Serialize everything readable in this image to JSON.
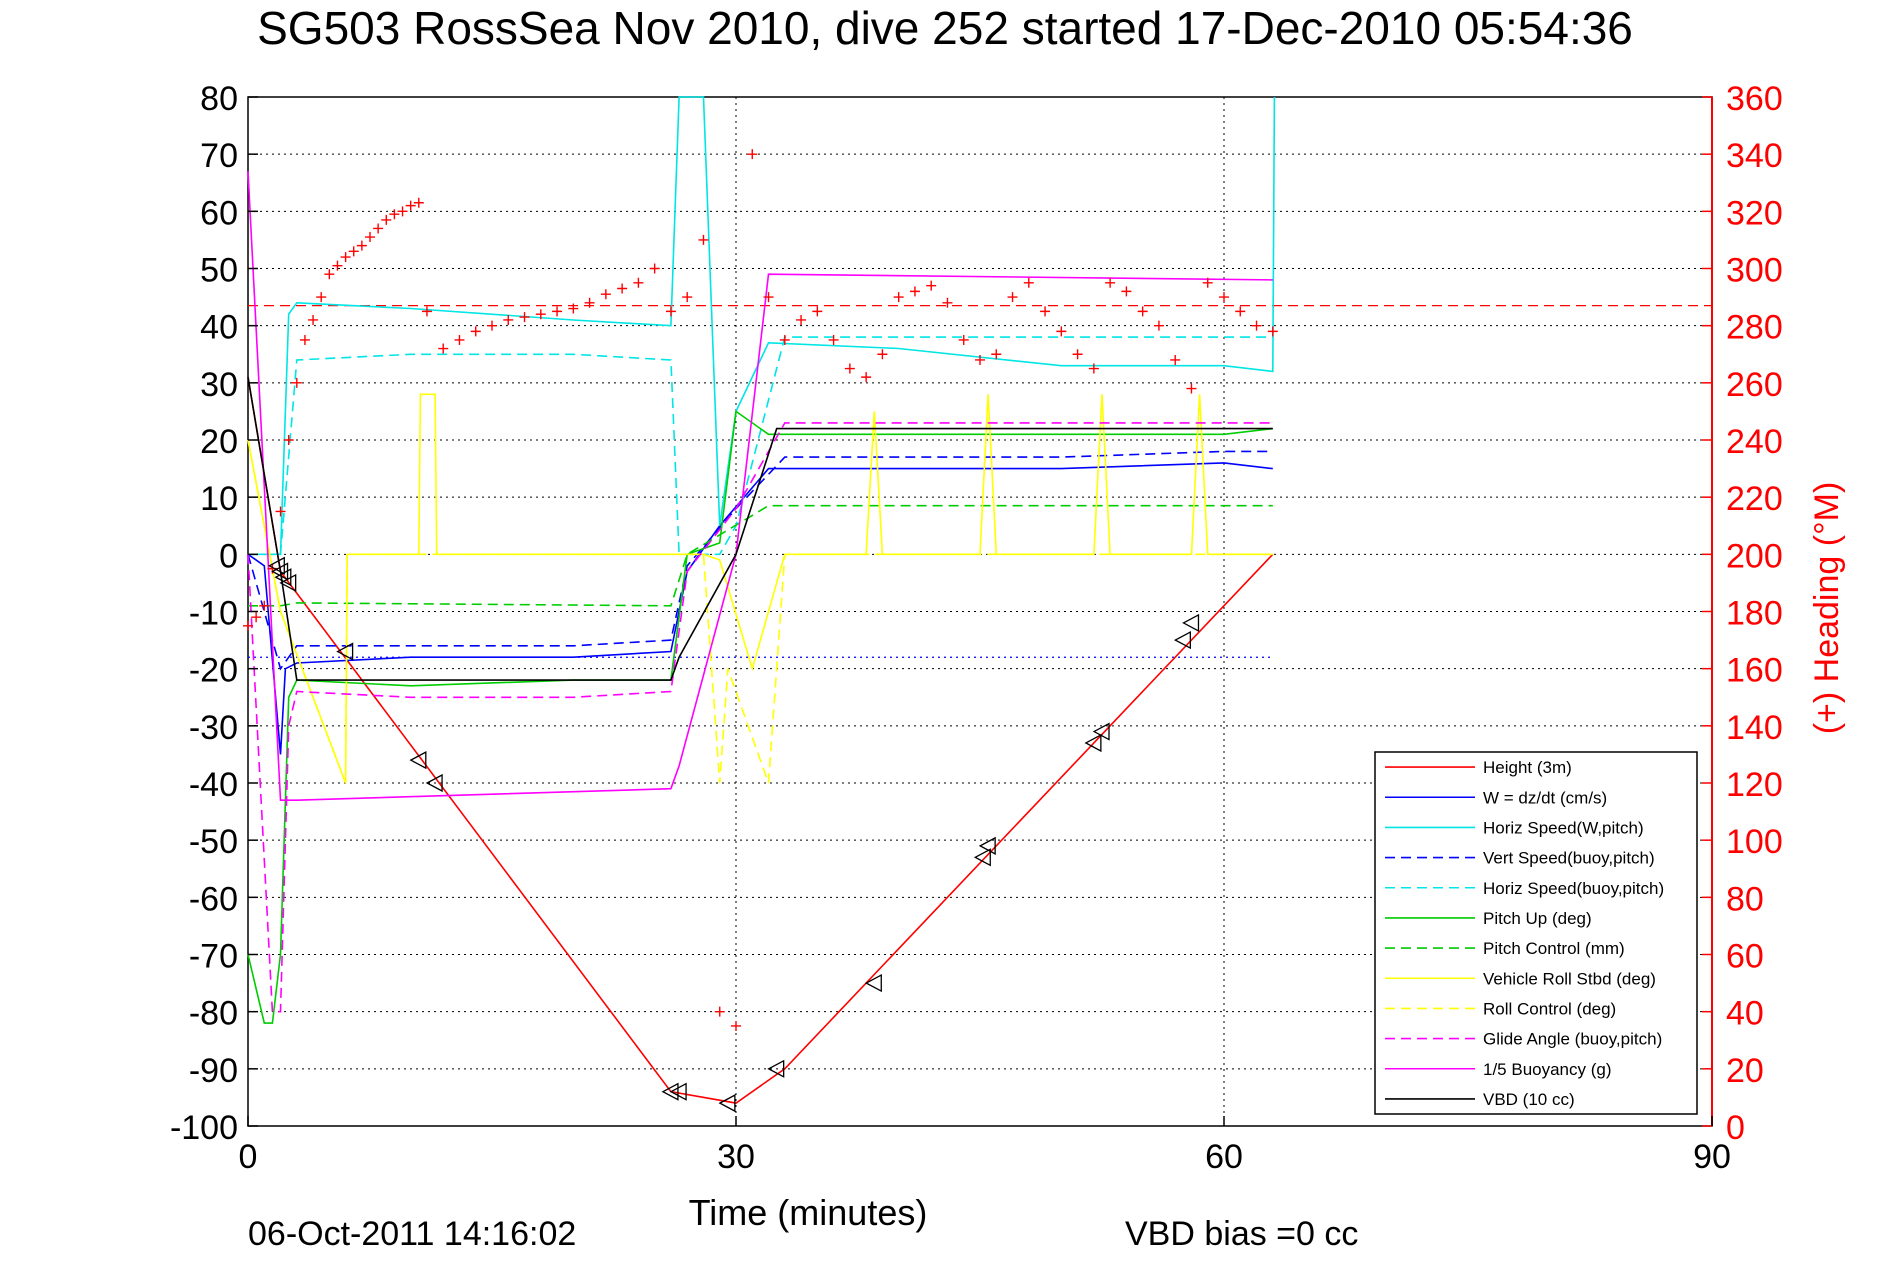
{
  "chart_data": {
    "type": "line",
    "title": "SG503 RossSea Nov 2010, dive 252 started 17-Dec-2010 05:54:36",
    "xlabel": "Time (minutes)",
    "ylabel": "",
    "y2label": "(+) Heading (°M)",
    "footer_left": "06-Oct-2011 14:16:02",
    "footer_right": "VBD bias =0 cc",
    "xlim": [
      0,
      90
    ],
    "ylim": [
      -100,
      80
    ],
    "y2lim": [
      0,
      360
    ],
    "xticks": [
      0,
      30,
      60,
      90
    ],
    "yticks": [
      80,
      70,
      60,
      50,
      40,
      30,
      20,
      10,
      0,
      -10,
      -20,
      -30,
      -40,
      -50,
      -60,
      -70,
      -80,
      -90,
      -100
    ],
    "y2ticks": [
      360,
      340,
      320,
      300,
      280,
      260,
      240,
      220,
      200,
      180,
      160,
      140,
      120,
      100,
      80,
      60,
      40,
      20,
      0
    ],
    "grid": true,
    "legend_position": "bottom-right",
    "reference_lines": [
      {
        "axis": "y",
        "value": 43.5,
        "color": "#ff0000",
        "style": "dashed"
      },
      {
        "axis": "y",
        "value": -18,
        "color": "#0000ff",
        "style": "dotted"
      }
    ],
    "series": [
      {
        "name": "Height (3m)",
        "color": "#ff0000",
        "style": "solid",
        "x": [
          0,
          2,
          26,
          30,
          33,
          63
        ],
        "y": [
          31,
          -3,
          -94,
          -96,
          -90,
          0
        ]
      },
      {
        "name": "W = dz/dt (cm/s)",
        "color": "#0000ff",
        "style": "solid",
        "x": [
          0,
          1,
          2,
          2.3,
          3,
          10,
          20,
          26,
          27,
          29,
          32,
          40,
          50,
          60,
          63
        ],
        "y": [
          0,
          -2,
          -35,
          -20,
          -19,
          -18,
          -18,
          -17,
          -3,
          5,
          15,
          15,
          15,
          16,
          15
        ]
      },
      {
        "name": "Horiz Speed(W,pitch)",
        "color": "#00e5e5",
        "style": "solid",
        "x": [
          0,
          2,
          2.5,
          3,
          10,
          20,
          26,
          26.5,
          27,
          28,
          29,
          30,
          32,
          40,
          50,
          60,
          63,
          63.1
        ],
        "y": [
          0,
          0,
          42,
          44,
          43,
          41,
          40,
          80,
          80,
          80,
          5,
          25,
          37,
          36,
          33,
          33,
          32,
          80
        ]
      },
      {
        "name": "Vert Speed(buoy,pitch)",
        "color": "#0000ff",
        "style": "dashed",
        "x": [
          0,
          2,
          3,
          10,
          20,
          26,
          27,
          30,
          33,
          40,
          50,
          60,
          63
        ],
        "y": [
          0,
          -20,
          -16,
          -16,
          -16,
          -15,
          -2,
          8,
          17,
          17,
          17,
          18,
          18
        ]
      },
      {
        "name": "Horiz Speed(buoy,pitch)",
        "color": "#00e5e5",
        "style": "dashed",
        "x": [
          0,
          2,
          3,
          10,
          20,
          26,
          26.5,
          27,
          29,
          30,
          33,
          40,
          50,
          60,
          63
        ],
        "y": [
          0,
          0,
          34,
          35,
          35,
          34,
          0,
          0,
          0,
          5,
          38,
          38,
          38,
          38,
          38
        ]
      },
      {
        "name": "Pitch Up (deg)",
        "color": "#00cc00",
        "style": "solid",
        "x": [
          0,
          1,
          1.5,
          2,
          2.5,
          3,
          10,
          20,
          26,
          27,
          29,
          30,
          32,
          40,
          50,
          60,
          63
        ],
        "y": [
          -70,
          -82,
          -82,
          -70,
          -25,
          -22,
          -23,
          -22,
          -22,
          0,
          2,
          25,
          21,
          21,
          21,
          21,
          22
        ]
      },
      {
        "name": "Pitch Control (mm)",
        "color": "#00cc00",
        "style": "dashed",
        "x": [
          0,
          2,
          3,
          26,
          27,
          32,
          63
        ],
        "y": [
          -9,
          -9,
          -8.5,
          -9,
          0,
          8.5,
          8.5
        ]
      },
      {
        "name": "Vehicle Roll Stbd (deg)",
        "color": "#ffff00",
        "style": "solid",
        "x": [
          0,
          2,
          6,
          6.1,
          10.5,
          10.6,
          11.5,
          11.6,
          26,
          28,
          29,
          31,
          33,
          38,
          38.5,
          39,
          45,
          45.5,
          46,
          52,
          52.5,
          53,
          58,
          58.5,
          59,
          63
        ],
        "y": [
          20,
          -10,
          -40,
          0,
          0,
          28,
          28,
          0,
          0,
          0,
          -1,
          -20,
          0,
          0,
          25,
          0,
          0,
          28,
          0,
          0,
          28,
          0,
          0,
          28,
          0,
          0
        ]
      },
      {
        "name": "Roll Control (deg)",
        "color": "#ffff00",
        "style": "dashed",
        "x": [
          0,
          2,
          6,
          6.1,
          26,
          28,
          29,
          29.5,
          32,
          33,
          63
        ],
        "y": [
          20,
          -10,
          -40,
          0,
          0,
          0,
          -40,
          -20,
          -40,
          0,
          0
        ]
      },
      {
        "name": "Glide Angle (buoy,pitch)",
        "color": "#ff00ff",
        "style": "dashed",
        "x": [
          0,
          1.5,
          2,
          2.5,
          3,
          10,
          20,
          26,
          27,
          30,
          33,
          40,
          50,
          60,
          63
        ],
        "y": [
          0,
          -80,
          -80,
          -30,
          -24,
          -25,
          -25,
          -24,
          -3,
          8,
          23,
          23,
          23,
          23,
          23
        ]
      },
      {
        "name": "1/5 Buoyancy (g)",
        "color": "#ff00ff",
        "style": "solid",
        "x": [
          0,
          2,
          3,
          26,
          26.5,
          30,
          32,
          63
        ],
        "y": [
          67,
          -43,
          -43,
          -41,
          -37,
          0,
          49,
          48
        ]
      },
      {
        "name": "VBD (10 cc)",
        "color": "#000000",
        "style": "solid",
        "x": [
          0,
          2,
          3,
          26,
          26.5,
          30,
          32.5,
          63
        ],
        "y": [
          31,
          -3,
          -22,
          -22,
          -18,
          0,
          22,
          22
        ]
      }
    ],
    "heading": {
      "name": "(+) Heading",
      "color": "#ff0000",
      "marker": "+",
      "axis": "right",
      "x": [
        0,
        0.5,
        1,
        1.5,
        2,
        2.5,
        3,
        3.5,
        4,
        4.5,
        5,
        5.5,
        6,
        6.5,
        7,
        7.5,
        8,
        8.5,
        9,
        9.5,
        10,
        10.5,
        11,
        12,
        13,
        14,
        15,
        16,
        17,
        18,
        19,
        20,
        21,
        22,
        23,
        24,
        25,
        26,
        27,
        28,
        29,
        30,
        31,
        32,
        33,
        34,
        35,
        36,
        37,
        38,
        39,
        40,
        41,
        42,
        43,
        44,
        45,
        46,
        47,
        48,
        49,
        50,
        51,
        52,
        53,
        54,
        55,
        56,
        57,
        58,
        59,
        60,
        61,
        62,
        63
      ],
      "y": [
        175,
        178,
        182,
        195,
        215,
        240,
        260,
        275,
        282,
        290,
        298,
        301,
        304,
        306,
        308,
        311,
        314,
        317,
        319,
        320,
        322,
        323,
        285,
        272,
        275,
        278,
        280,
        282,
        283,
        284,
        285,
        286,
        288,
        291,
        293,
        295,
        300,
        285,
        290,
        310,
        40,
        35,
        340,
        290,
        275,
        282,
        285,
        275,
        265,
        262,
        270,
        290,
        292,
        294,
        288,
        275,
        268,
        270,
        290,
        295,
        285,
        278,
        270,
        265,
        295,
        292,
        285,
        280,
        268,
        258,
        295,
        290,
        285,
        280,
        278
      ]
    },
    "triangles": {
      "name": "marker",
      "color": "#000000",
      "x": [
        1.8,
        2.0,
        2.2,
        2.5,
        6,
        10.5,
        11.5,
        26,
        26.5,
        29.5,
        32.5,
        38.5,
        45.2,
        45.5,
        52,
        52.5,
        57.5,
        58
      ],
      "y": [
        -2,
        -3,
        -4,
        -5,
        -17,
        -36,
        -40,
        -94,
        -94,
        -96,
        -90,
        -75,
        -53,
        -51,
        -33,
        -31,
        -15,
        -12
      ]
    }
  }
}
